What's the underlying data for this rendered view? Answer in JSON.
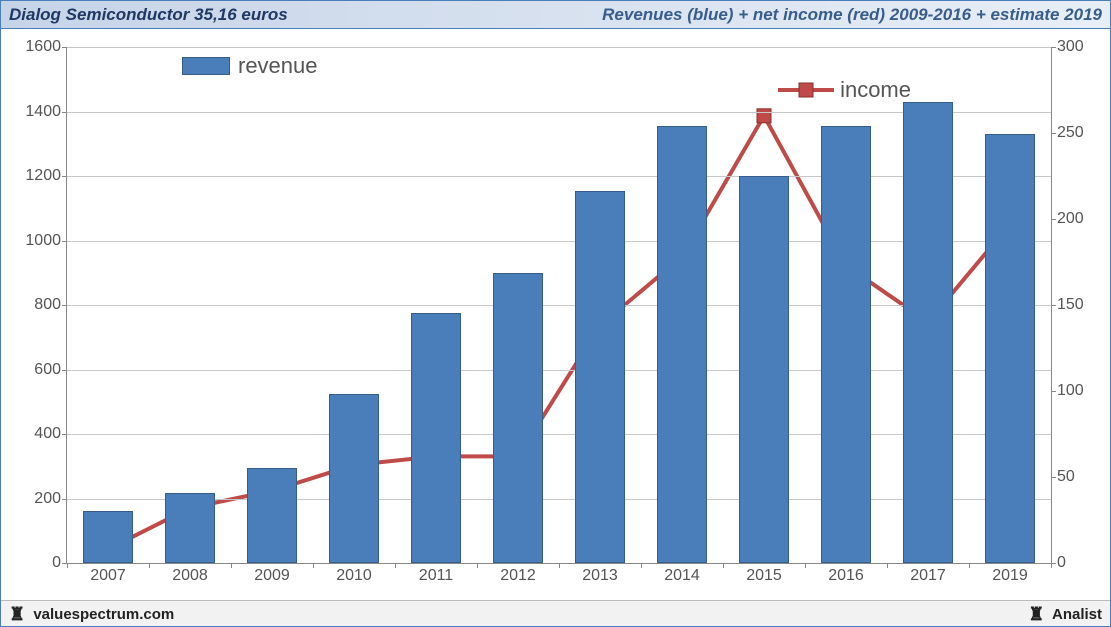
{
  "header": {
    "left": "Dialog Semiconductor 35,16 euros",
    "right": "Revenues (blue) + net income (red) 2009-2016 + estimate 2019"
  },
  "footer": {
    "left": "valuespectrum.com",
    "right": "Analist"
  },
  "chart": {
    "type": "bar+line",
    "background_color": "#ffffff",
    "grid_color": "#c8c8c8",
    "axis_color": "#888888",
    "label_fontsize": 16,
    "label_color": "#555555",
    "legend_fontsize": 22,
    "categories": [
      "2007",
      "2008",
      "2009",
      "2010",
      "2011",
      "2012",
      "2013",
      "2014",
      "2015",
      "2016",
      "2017",
      "2019"
    ],
    "revenue": {
      "legend_label": "revenue",
      "axis": "left",
      "color": "#4a7ebb",
      "border_color": "#385d8a",
      "bar_width_ratio": 0.62,
      "values": [
        160,
        218,
        295,
        525,
        775,
        900,
        1155,
        1355,
        1200,
        1355,
        1430,
        1330
      ]
    },
    "income": {
      "legend_label": "income",
      "axis": "right",
      "color": "#be4b48",
      "line_width": 4,
      "marker_size": 14,
      "values": [
        8,
        32,
        42,
        57,
        62,
        62,
        138,
        178,
        260,
        173,
        140,
        197
      ]
    },
    "y_left": {
      "min": 0,
      "max": 1600,
      "step": 200
    },
    "y_right": {
      "min": 0,
      "max": 300,
      "step": 50
    }
  }
}
